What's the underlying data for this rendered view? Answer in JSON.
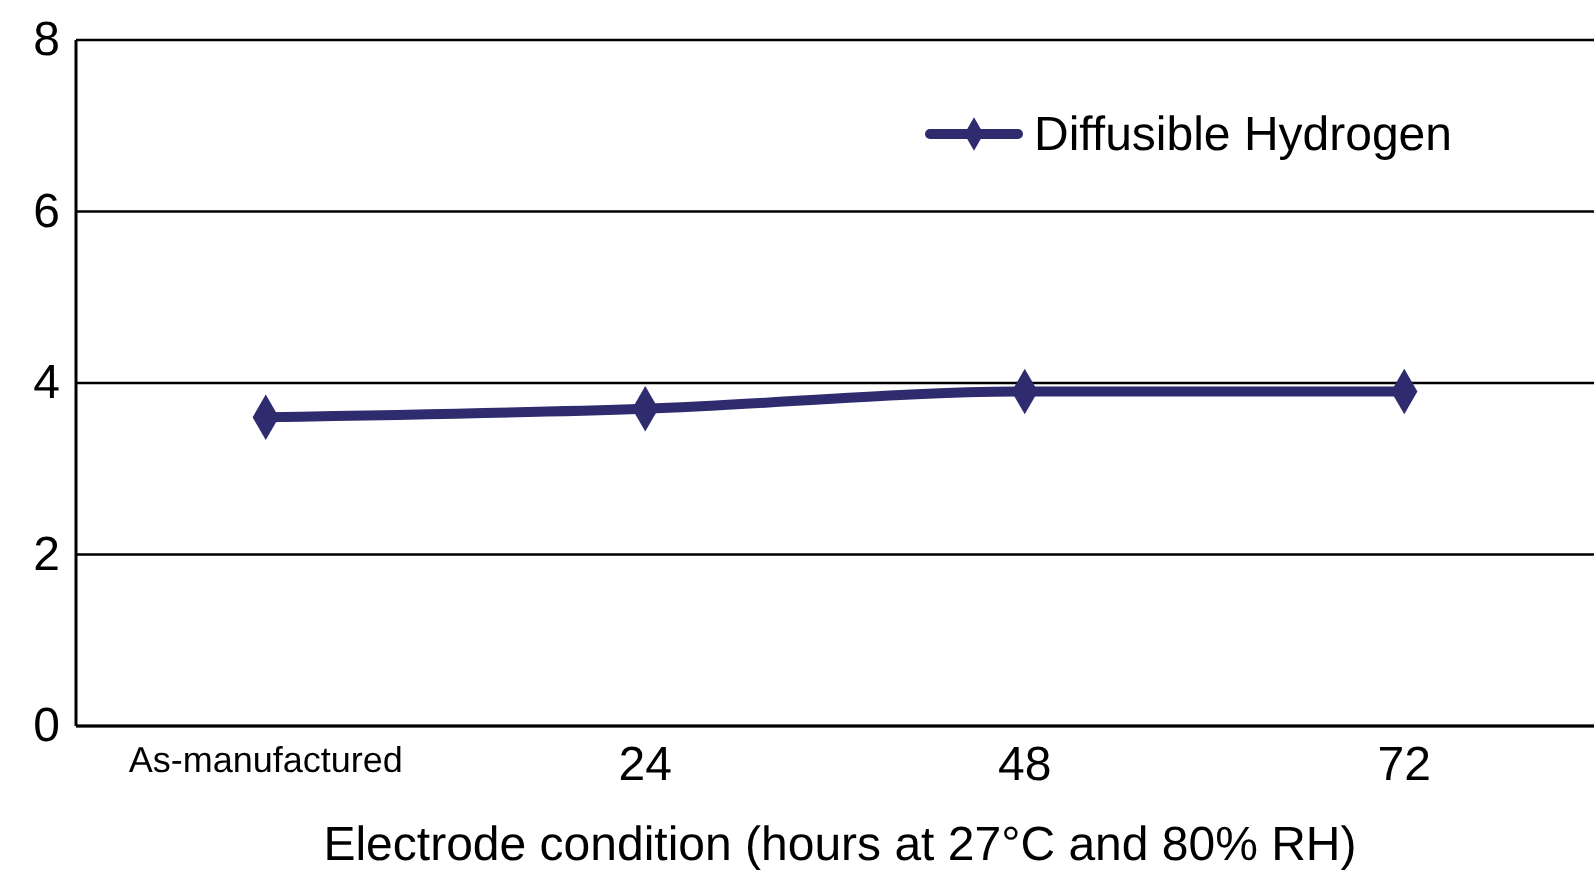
{
  "chart_data": {
    "type": "line",
    "xlabel": "Electrode condition (hours at 27°C and 80% RH)",
    "categories": [
      "As-manufactured",
      "24",
      "48",
      "72"
    ],
    "series": [
      {
        "name": "Diffusible Hydrogen",
        "color": "#2e2b6e",
        "values": [
          3.6,
          3.7,
          3.9,
          3.9
        ]
      }
    ],
    "ylim": [
      0,
      8
    ],
    "yticks": [
      0,
      2,
      4,
      6,
      8
    ],
    "grid": "y",
    "legend": "top right",
    "marker": "diamond",
    "line_style": "solid"
  }
}
